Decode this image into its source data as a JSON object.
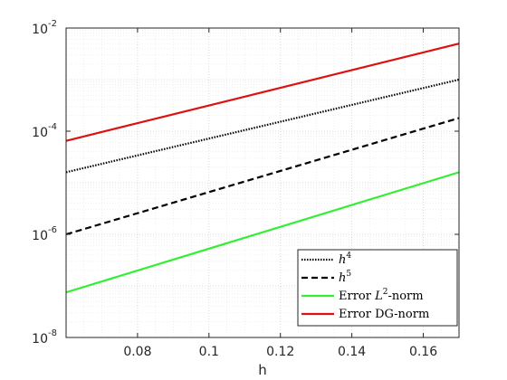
{
  "chart_data": {
    "type": "line",
    "title": "",
    "xlabel": "h",
    "ylabel": "",
    "xscale": "linear",
    "yscale": "log",
    "xlim": [
      0.06,
      0.17
    ],
    "ylim": [
      1e-08,
      0.01
    ],
    "grid": true,
    "legend_position": "bottom-right",
    "x_ticks": [
      0.08,
      0.1,
      0.12,
      0.14,
      0.16
    ],
    "x_tick_labels": [
      "0.08",
      "0.1",
      "0.12",
      "0.14",
      "0.16"
    ],
    "y_ticks": [
      1e-08,
      1e-06,
      0.0001,
      0.01
    ],
    "y_tick_labels": [
      {
        "base": "10",
        "exp": "-8"
      },
      {
        "base": "10",
        "exp": "-6"
      },
      {
        "base": "10",
        "exp": "-4"
      },
      {
        "base": "10",
        "exp": "-2"
      }
    ],
    "series": [
      {
        "name": "h^4",
        "legend_base": "h",
        "legend_exp": "4",
        "color": "#000000",
        "style": "dotted",
        "x": [
          0.06,
          0.17
        ],
        "values": [
          1.6e-05,
          0.001
        ]
      },
      {
        "name": "h^5",
        "legend_base": "h",
        "legend_exp": "5",
        "color": "#000000",
        "style": "dashed",
        "x": [
          0.06,
          0.17
        ],
        "values": [
          1e-06,
          0.00018
        ]
      },
      {
        "name": "Error L^2-norm",
        "legend_pre": "Error ",
        "legend_italic": "L",
        "legend_exp": "2",
        "legend_post": "-norm",
        "color": "#33ee33",
        "style": "solid",
        "x": [
          0.06,
          0.17
        ],
        "values": [
          7.5e-08,
          1.6e-05
        ]
      },
      {
        "name": "Error DG-norm",
        "legend_pre": "Error DG-norm",
        "color": "#dd1111",
        "style": "solid",
        "x": [
          0.06,
          0.17
        ],
        "values": [
          6.5e-05,
          0.005
        ]
      }
    ]
  }
}
